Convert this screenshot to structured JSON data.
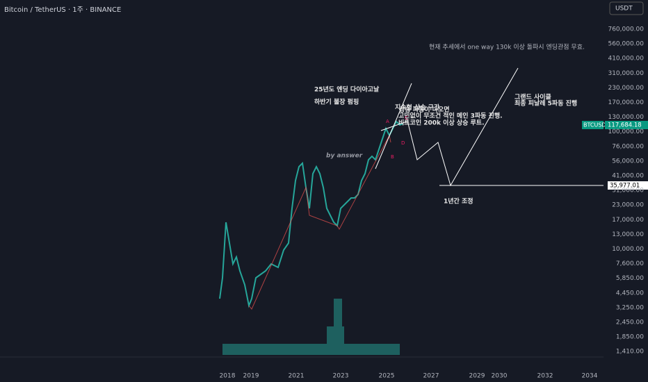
{
  "header": {
    "symbol": "Bitcoin / TetherUS · 1주 · BINANCE",
    "currency_button": "USDT"
  },
  "price_axis": [
    "760,000.00",
    "560,000.00",
    "410,000.00",
    "310,000.00",
    "230,000.00",
    "170,000.00",
    "130,000.00",
    "100,000.00",
    "76,000.00",
    "56,000.00",
    "41,000.00",
    "31,000.00",
    "23,000.00",
    "17,000.00",
    "13,000.00",
    "10,000.00",
    "7,600.00",
    "5,850.00",
    "4,450.00",
    "3,250.00",
    "2,450.00",
    "1,850.00",
    "1,410.00"
  ],
  "time_axis": [
    "2018",
    "2019",
    "2021",
    "2023",
    "2025",
    "2027",
    "2029",
    "2030",
    "2032",
    "2034"
  ],
  "price_tags": {
    "symbol": "BTCUSDT",
    "last_price": "117,684.18",
    "level": "35,977.01"
  },
  "annotations": {
    "top_note": "현재 추세에서  one way 130k 이상 돌파시 엔딩관점 무효.",
    "diagonal_title": "25년도 엔딩 다이아고날",
    "diagonal_sub": "하반기 불장 펌핑",
    "continuation": "지속형 상승 구간",
    "condition": "상승 파동이 나오면",
    "wave3": "고민없이 무조건 적인 메인 3파동 진행.",
    "route": "비트코인 200k 이상 상승 루트.",
    "grand_cycle": "그랜드 사이클",
    "finale": "최종 피날레 5파동 진행",
    "author": "by answer",
    "correction": "1년간 조정",
    "wave_labels": [
      "A",
      "B",
      "C",
      "D"
    ]
  }
}
